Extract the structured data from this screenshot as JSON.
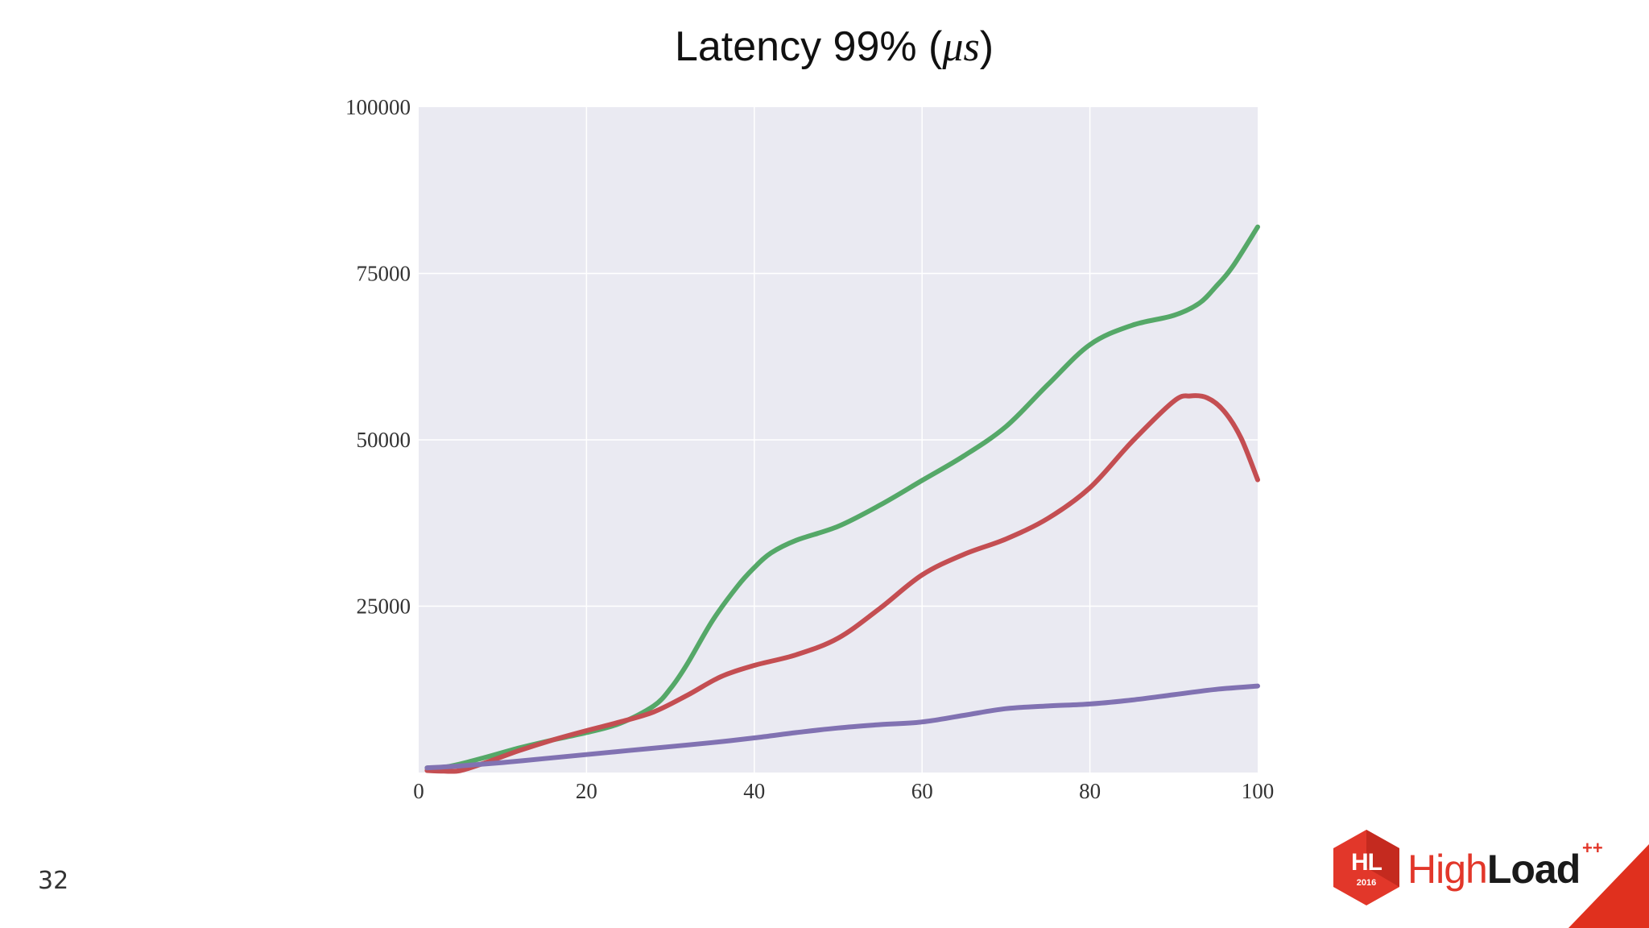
{
  "slide": {
    "number": "32"
  },
  "logo": {
    "mark": "HL",
    "year": "2016",
    "word_1": "High",
    "word_2": "Load",
    "superscript": "++"
  },
  "colors": {
    "background": "#ffffff",
    "plot_background": "#eaeaf2",
    "grid": "#ffffff",
    "brand_red": "#e2372a"
  },
  "chart_data": {
    "type": "line",
    "title_prefix": "Latency 99% (",
    "title_math": "μs",
    "title_suffix": ")",
    "xlabel": "",
    "ylabel": "",
    "xlim": [
      0,
      100
    ],
    "ylim": [
      0,
      100000
    ],
    "x_ticks": [
      0,
      20,
      40,
      60,
      80,
      100
    ],
    "y_ticks": [
      25000,
      50000,
      75000,
      100000
    ],
    "grid": true,
    "legend": "none",
    "series": [
      {
        "color": "#55a868",
        "x": [
          1,
          3,
          5,
          8,
          12,
          16,
          20,
          24,
          28,
          30,
          32,
          35,
          38,
          40,
          42,
          45,
          50,
          55,
          60,
          65,
          70,
          75,
          80,
          85,
          90,
          93,
          95,
          97,
          100
        ],
        "y": [
          700,
          800,
          1300,
          2300,
          3700,
          4900,
          6000,
          7400,
          10000,
          12600,
          16300,
          22800,
          28000,
          30800,
          33000,
          34900,
          37000,
          40200,
          43900,
          47600,
          52000,
          58300,
          64300,
          67200,
          68700,
          70500,
          73000,
          76000,
          82000
        ]
      },
      {
        "color": "#c44e52",
        "x": [
          1,
          3,
          5,
          8,
          12,
          16,
          20,
          24,
          28,
          32,
          36,
          40,
          45,
          50,
          55,
          60,
          65,
          70,
          75,
          80,
          85,
          90,
          92,
          94,
          96,
          98,
          100
        ],
        "y": [
          300,
          200,
          300,
          1500,
          3300,
          4900,
          6300,
          7600,
          9100,
          11600,
          14400,
          16100,
          17700,
          20200,
          24700,
          29700,
          32800,
          35100,
          38200,
          42800,
          49700,
          55800,
          56600,
          56300,
          54300,
          50300,
          44000
        ]
      },
      {
        "color": "#8172b2",
        "x": [
          1,
          5,
          10,
          15,
          20,
          25,
          30,
          35,
          40,
          45,
          50,
          55,
          60,
          65,
          70,
          75,
          80,
          85,
          90,
          95,
          100
        ],
        "y": [
          700,
          1000,
          1500,
          2100,
          2700,
          3300,
          3900,
          4500,
          5200,
          6000,
          6700,
          7200,
          7600,
          8600,
          9600,
          10000,
          10300,
          10900,
          11700,
          12500,
          13000
        ]
      }
    ]
  }
}
